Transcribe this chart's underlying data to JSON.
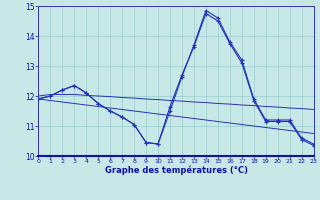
{
  "xlabel": "Graphe des températures (°C)",
  "x": [
    0,
    1,
    2,
    3,
    4,
    5,
    6,
    7,
    8,
    9,
    10,
    11,
    12,
    13,
    14,
    15,
    16,
    17,
    18,
    19,
    20,
    21,
    22,
    23
  ],
  "series_main": [
    11.9,
    12.0,
    12.2,
    12.35,
    12.1,
    11.75,
    11.5,
    11.3,
    11.05,
    10.45,
    10.4,
    11.5,
    12.65,
    13.7,
    14.85,
    14.6,
    13.8,
    13.2,
    11.9,
    11.2,
    11.2,
    11.2,
    10.6,
    10.4
  ],
  "series_alt": [
    11.9,
    12.0,
    12.2,
    12.35,
    12.1,
    11.75,
    11.5,
    11.3,
    11.05,
    10.45,
    10.4,
    11.65,
    12.7,
    13.65,
    14.75,
    14.5,
    13.75,
    13.1,
    11.85,
    11.15,
    11.15,
    11.15,
    10.55,
    10.35
  ],
  "trend1": [
    12.0,
    12.05,
    12.05,
    12.05,
    12.02,
    12.0,
    11.98,
    11.95,
    11.93,
    11.9,
    11.88,
    11.85,
    11.83,
    11.8,
    11.78,
    11.75,
    11.73,
    11.7,
    11.68,
    11.65,
    11.63,
    11.6,
    11.58,
    11.55
  ],
  "trend2": [
    11.9,
    11.85,
    11.8,
    11.75,
    11.7,
    11.65,
    11.6,
    11.55,
    11.5,
    11.45,
    11.4,
    11.35,
    11.3,
    11.25,
    11.2,
    11.15,
    11.1,
    11.05,
    11.0,
    10.95,
    10.9,
    10.85,
    10.8,
    10.75
  ],
  "line_color": "#2233bb",
  "bg_color": "#c8e8e8",
  "grid_color": "#99cccc",
  "spine_color": "#3333aa",
  "label_color": "#1111aa",
  "ylim": [
    10,
    15
  ],
  "yticks": [
    10,
    11,
    12,
    13,
    14,
    15
  ],
  "xlim": [
    0,
    23
  ]
}
